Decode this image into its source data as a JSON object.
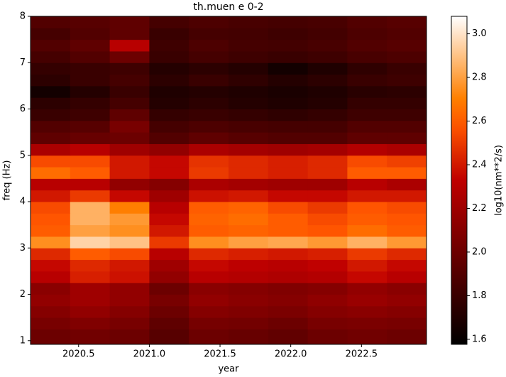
{
  "chart_data": {
    "type": "heatmap",
    "title": "th.muen e 0-2",
    "x_label": "year",
    "y_label": "freq (Hz)",
    "colorbar_label": "log10(nm**2/s)",
    "colormap": "gist_heat",
    "xlim": [
      2020.16,
      2022.96
    ],
    "ylim": [
      0.92,
      8
    ],
    "xticks": [
      2020.5,
      {
        "value": 2021,
        "label": "2021.0"
      },
      2021.5,
      {
        "value": 2022,
        "label": "2022.0"
      },
      2022.5
    ],
    "yticks": [
      1,
      2,
      3,
      4,
      5,
      6,
      7,
      8
    ],
    "clim": [
      1.577,
      3.08
    ],
    "cticks": [
      1.6,
      1.8,
      {
        "value": 2,
        "label": "2.0"
      },
      2.2,
      2.4,
      2.6,
      2.8,
      {
        "value": 3,
        "label": "3.0"
      }
    ],
    "x_bins": [
      2020.16,
      2020.44,
      2020.72,
      2021.0,
      2021.28,
      2021.56,
      2021.84,
      2022.12,
      2022.4,
      2022.68,
      2022.96
    ],
    "y_bins": [
      0.92,
      1.25,
      1.5,
      1.75,
      2.0,
      2.25,
      2.5,
      2.75,
      3.0,
      3.25,
      3.5,
      3.75,
      4.0,
      4.25,
      4.5,
      4.75,
      5.0,
      5.25,
      5.5,
      5.75,
      6.0,
      6.25,
      6.5,
      6.75,
      7.0,
      7.25,
      7.5,
      7.75,
      8.0
    ],
    "z": [
      [
        2.0,
        2.02,
        2.0,
        1.92,
        2.0,
        1.98,
        1.96,
        2.0,
        2.02,
        2.0
      ],
      [
        2.05,
        2.08,
        2.05,
        1.95,
        2.04,
        2.03,
        2.0,
        2.05,
        2.06,
        2.05
      ],
      [
        2.1,
        2.15,
        2.1,
        2.0,
        2.1,
        2.08,
        2.06,
        2.1,
        2.12,
        2.1
      ],
      [
        2.15,
        2.2,
        2.15,
        2.05,
        2.15,
        2.12,
        2.1,
        2.14,
        2.18,
        2.15
      ],
      [
        2.12,
        2.2,
        2.15,
        2.0,
        2.12,
        2.1,
        2.08,
        2.1,
        2.15,
        2.12
      ],
      [
        2.3,
        2.42,
        2.38,
        2.15,
        2.3,
        2.28,
        2.26,
        2.28,
        2.35,
        2.3
      ],
      [
        2.35,
        2.45,
        2.4,
        2.2,
        2.35,
        2.32,
        2.3,
        2.33,
        2.4,
        2.35
      ],
      [
        2.45,
        2.6,
        2.55,
        2.3,
        2.45,
        2.42,
        2.4,
        2.42,
        2.5,
        2.45
      ],
      [
        2.75,
        2.95,
        2.9,
        2.5,
        2.75,
        2.8,
        2.82,
        2.78,
        2.85,
        2.78
      ],
      [
        2.6,
        2.8,
        2.75,
        2.4,
        2.6,
        2.62,
        2.6,
        2.58,
        2.65,
        2.6
      ],
      [
        2.58,
        2.85,
        2.78,
        2.35,
        2.62,
        2.65,
        2.6,
        2.55,
        2.6,
        2.58
      ],
      [
        2.55,
        2.85,
        2.7,
        2.3,
        2.6,
        2.62,
        2.55,
        2.5,
        2.58,
        2.55
      ],
      [
        2.4,
        2.5,
        2.35,
        2.2,
        2.38,
        2.4,
        2.35,
        2.35,
        2.4,
        2.4
      ],
      [
        2.3,
        2.3,
        2.15,
        2.1,
        2.25,
        2.22,
        2.2,
        2.2,
        2.3,
        2.25
      ],
      [
        2.65,
        2.6,
        2.4,
        2.35,
        2.5,
        2.45,
        2.42,
        2.45,
        2.6,
        2.6
      ],
      [
        2.55,
        2.55,
        2.4,
        2.35,
        2.48,
        2.45,
        2.42,
        2.45,
        2.55,
        2.52
      ],
      [
        2.25,
        2.3,
        2.2,
        2.15,
        2.25,
        2.22,
        2.2,
        2.22,
        2.28,
        2.25
      ],
      [
        1.95,
        1.98,
        2.0,
        1.9,
        1.95,
        1.92,
        1.9,
        1.9,
        1.95,
        1.95
      ],
      [
        1.9,
        1.92,
        2.05,
        1.85,
        1.88,
        1.86,
        1.85,
        1.85,
        1.9,
        1.9
      ],
      [
        1.8,
        1.82,
        1.95,
        1.78,
        1.8,
        1.78,
        1.76,
        1.78,
        1.82,
        1.82
      ],
      [
        1.75,
        1.78,
        1.85,
        1.72,
        1.75,
        1.72,
        1.7,
        1.72,
        1.78,
        1.78
      ],
      [
        1.65,
        1.72,
        1.8,
        1.7,
        1.72,
        1.7,
        1.68,
        1.7,
        1.74,
        1.75
      ],
      [
        1.75,
        1.8,
        1.85,
        1.75,
        1.8,
        1.76,
        1.72,
        1.75,
        1.8,
        1.82
      ],
      [
        1.78,
        1.8,
        1.82,
        1.72,
        1.75,
        1.72,
        1.65,
        1.7,
        1.76,
        1.8
      ],
      [
        1.85,
        1.9,
        2.0,
        1.8,
        1.85,
        1.82,
        1.8,
        1.82,
        1.86,
        1.88
      ],
      [
        1.9,
        1.95,
        2.3,
        1.82,
        1.88,
        1.85,
        1.84,
        1.86,
        1.9,
        1.92
      ],
      [
        1.85,
        1.9,
        1.95,
        1.8,
        1.85,
        1.84,
        1.82,
        1.84,
        1.88,
        1.9
      ],
      [
        1.9,
        1.92,
        1.95,
        1.85,
        1.88,
        1.86,
        1.85,
        1.86,
        1.9,
        1.92
      ]
    ]
  }
}
